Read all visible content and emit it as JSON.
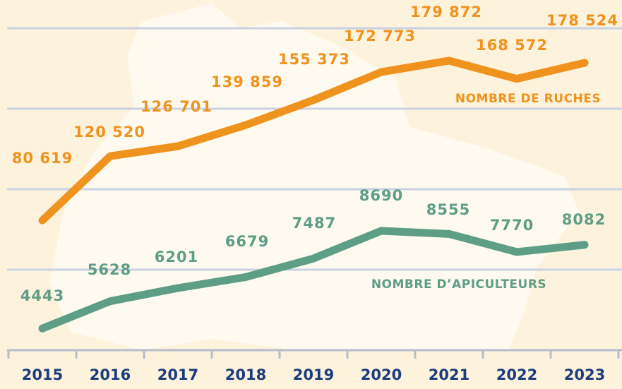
{
  "chart_data": {
    "type": "line",
    "categories": [
      "2015",
      "2016",
      "2017",
      "2018",
      "2019",
      "2020",
      "2021",
      "2022",
      "2023"
    ],
    "series": [
      {
        "name": "NOMBRE DE RUCHES",
        "color": "#f0921e",
        "values": [
          80619,
          120520,
          126701,
          139859,
          155373,
          172773,
          179872,
          168572,
          178524
        ],
        "value_labels": [
          "80 619",
          "120 520",
          "126 701",
          "139 859",
          "155 373",
          "172 773",
          "179 872",
          "168 572",
          "178 524"
        ]
      },
      {
        "name": "NOMBRE D’APICULTEURS",
        "color": "#5e9e86",
        "axis": "y2",
        "values": [
          4443,
          5628,
          6201,
          6679,
          7487,
          8690,
          8555,
          7770,
          8082
        ]
      }
    ],
    "ylim": [
      0,
      200000
    ],
    "yticks": [
      0,
      50000,
      100000,
      150000,
      200000
    ],
    "y2lim": [
      3500,
      17500
    ],
    "grid": true
  }
}
